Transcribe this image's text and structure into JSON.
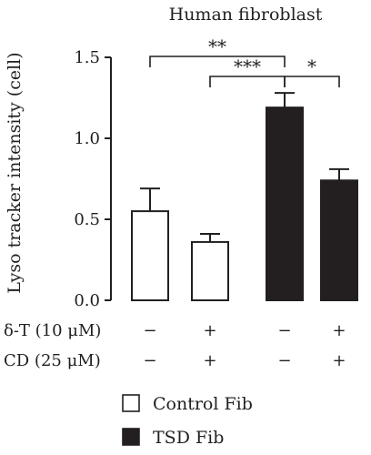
{
  "chart_data": {
    "type": "bar",
    "title": "Human fibroblast",
    "ylabel": "Lyso tracker intensity (cell)",
    "xlabel": "",
    "ylim": [
      0,
      1.5
    ],
    "yticks": [
      "0.0",
      "0.5",
      "1.0",
      "1.5"
    ],
    "grid": false,
    "bars": [
      {
        "value": 0.55,
        "error": 0.14,
        "series": "Control Fib"
      },
      {
        "value": 0.36,
        "error": 0.05,
        "series": "Control Fib"
      },
      {
        "value": 1.19,
        "error": 0.09,
        "series": "TSD Fib"
      },
      {
        "value": 0.74,
        "error": 0.07,
        "series": "TSD Fib"
      }
    ],
    "conditions": [
      {
        "label": "δ-T (10 μM)",
        "values": [
          "−",
          "+",
          "−",
          "+"
        ]
      },
      {
        "label": "CD (25 μM)",
        "values": [
          "−",
          "+",
          "−",
          "+"
        ]
      }
    ],
    "significance": [
      {
        "from": 0,
        "to": 2,
        "label": "**"
      },
      {
        "from": 1,
        "to": 2,
        "label": "***"
      },
      {
        "from": 2,
        "to": 3,
        "label": "*"
      }
    ],
    "legend": {
      "placement": "bottom",
      "entries": [
        {
          "name": "Control Fib",
          "color": "#ffffff"
        },
        {
          "name": "TSD Fib",
          "color": "#231f20"
        }
      ]
    },
    "colors": {
      "ink": "#231f20",
      "fill_open": "#ffffff",
      "fill_solid": "#231f20"
    }
  }
}
